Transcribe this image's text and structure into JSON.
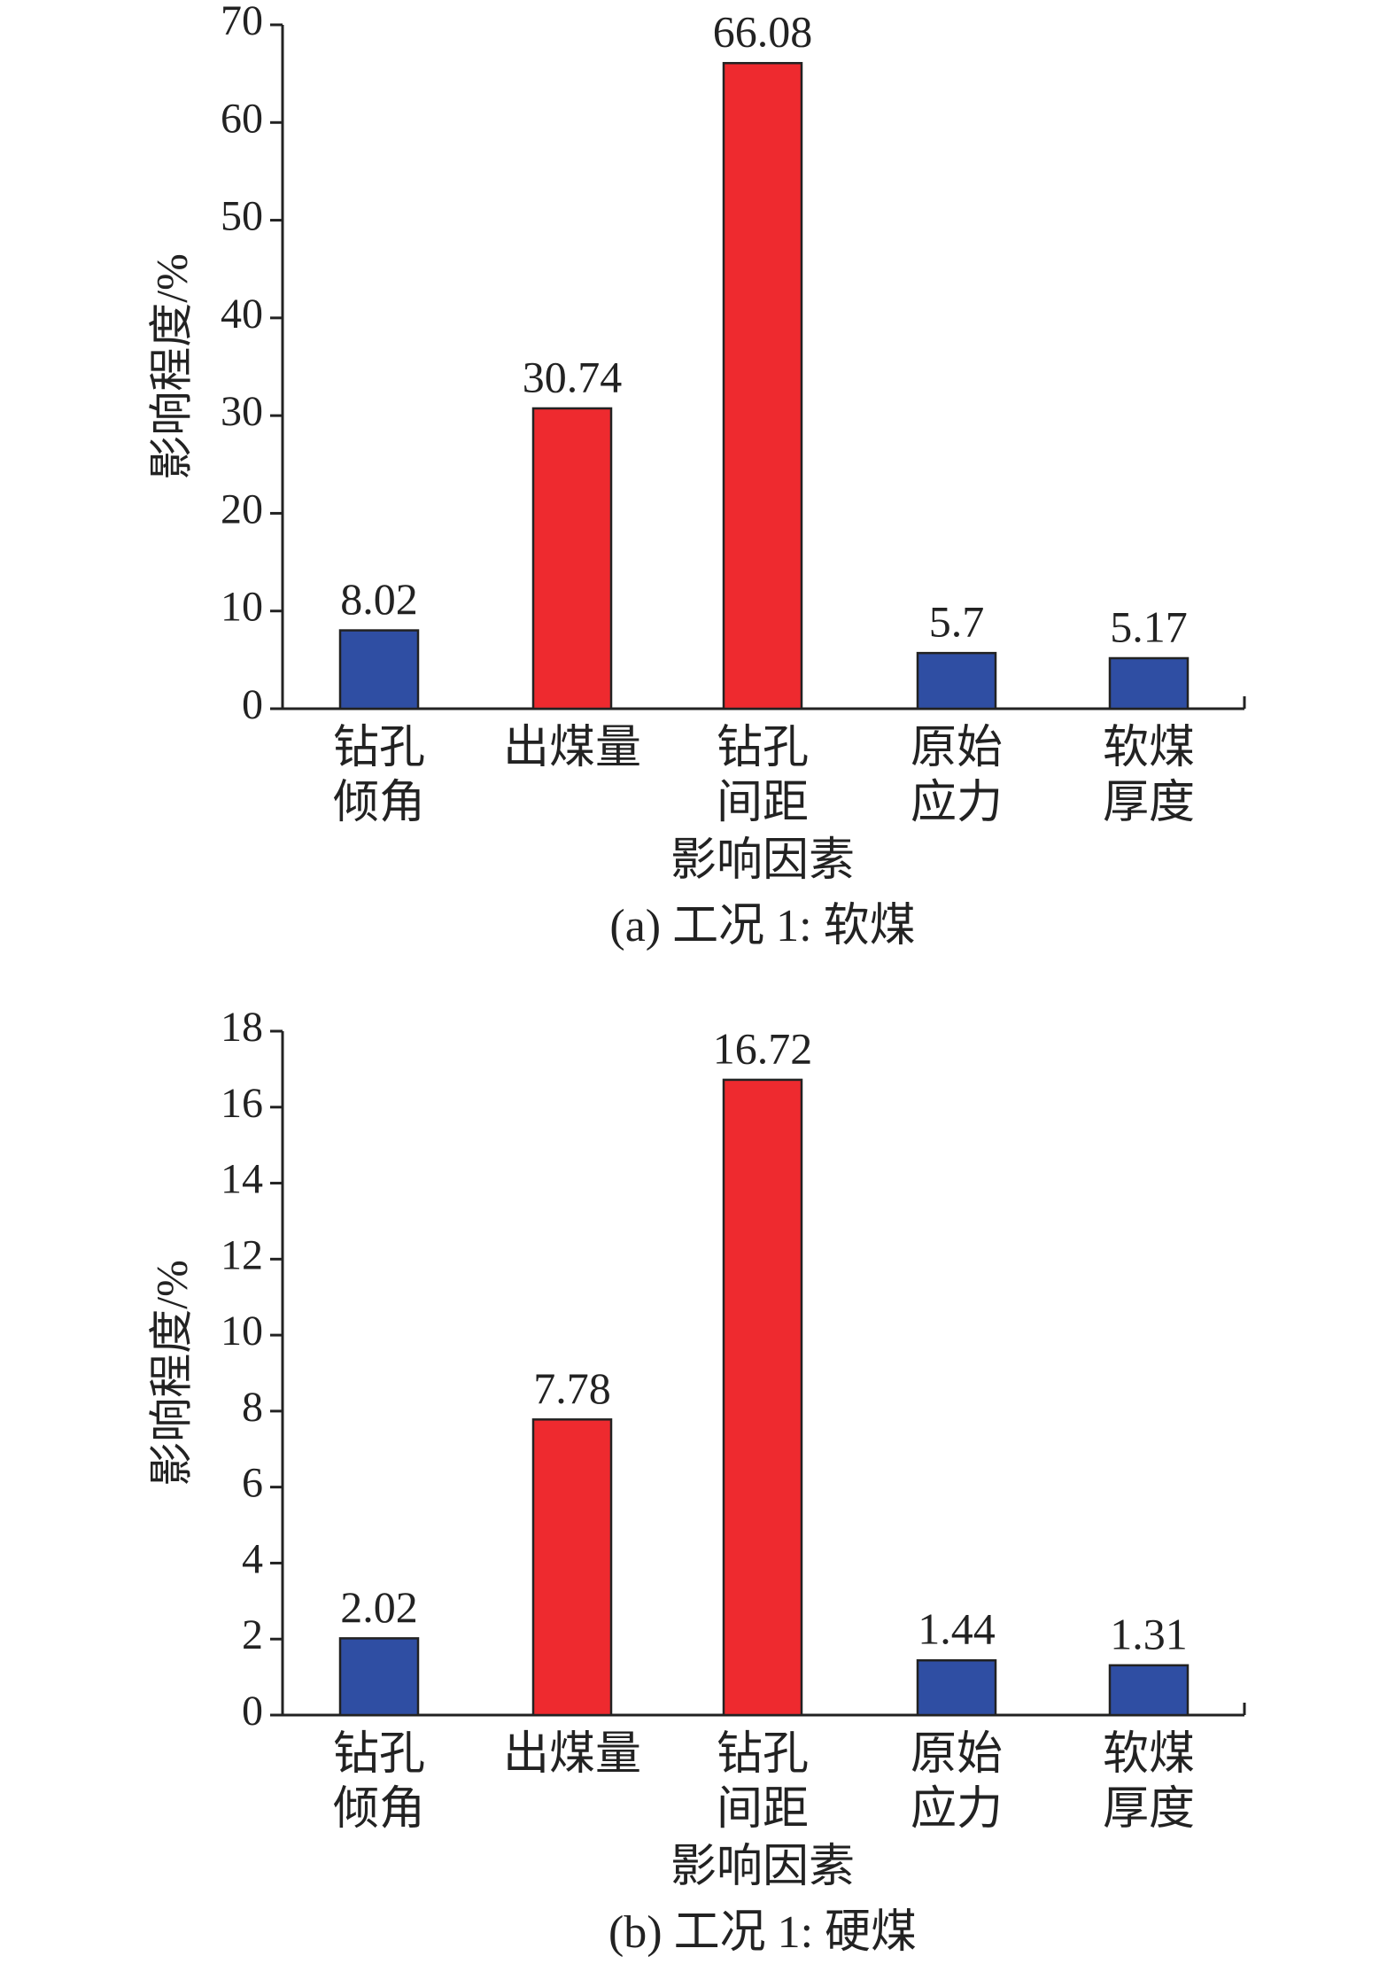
{
  "chart_data": [
    {
      "type": "bar",
      "title": "(a) 工况 1: 软煤",
      "xlabel": "影响因素",
      "ylabel": "影响程度/%",
      "categories": [
        [
          "钻孔",
          "倾角"
        ],
        [
          "出煤量"
        ],
        [
          "钻孔",
          "间距"
        ],
        [
          "原始",
          "应力"
        ],
        [
          "软煤",
          "厚度"
        ]
      ],
      "values": [
        8.02,
        30.74,
        66.08,
        5.7,
        5.17
      ],
      "colors": [
        "#2f4ea3",
        "#ee2a2f",
        "#ee2a2f",
        "#2f4ea3",
        "#2f4ea3"
      ],
      "ylim": [
        0,
        70
      ],
      "yticks": [
        0,
        10,
        20,
        30,
        40,
        50,
        60,
        70
      ]
    },
    {
      "type": "bar",
      "title": "(b) 工况 1: 硬煤",
      "xlabel": "影响因素",
      "ylabel": "影响程度/%",
      "categories": [
        [
          "钻孔",
          "倾角"
        ],
        [
          "出煤量"
        ],
        [
          "钻孔",
          "间距"
        ],
        [
          "原始",
          "应力"
        ],
        [
          "软煤",
          "厚度"
        ]
      ],
      "values": [
        2.02,
        7.78,
        16.72,
        1.44,
        1.31
      ],
      "colors": [
        "#2f4ea3",
        "#ee2a2f",
        "#ee2a2f",
        "#2f4ea3",
        "#2f4ea3"
      ],
      "ylim": [
        0,
        18
      ],
      "yticks": [
        0,
        2,
        4,
        6,
        8,
        10,
        12,
        14,
        16,
        18
      ]
    }
  ]
}
